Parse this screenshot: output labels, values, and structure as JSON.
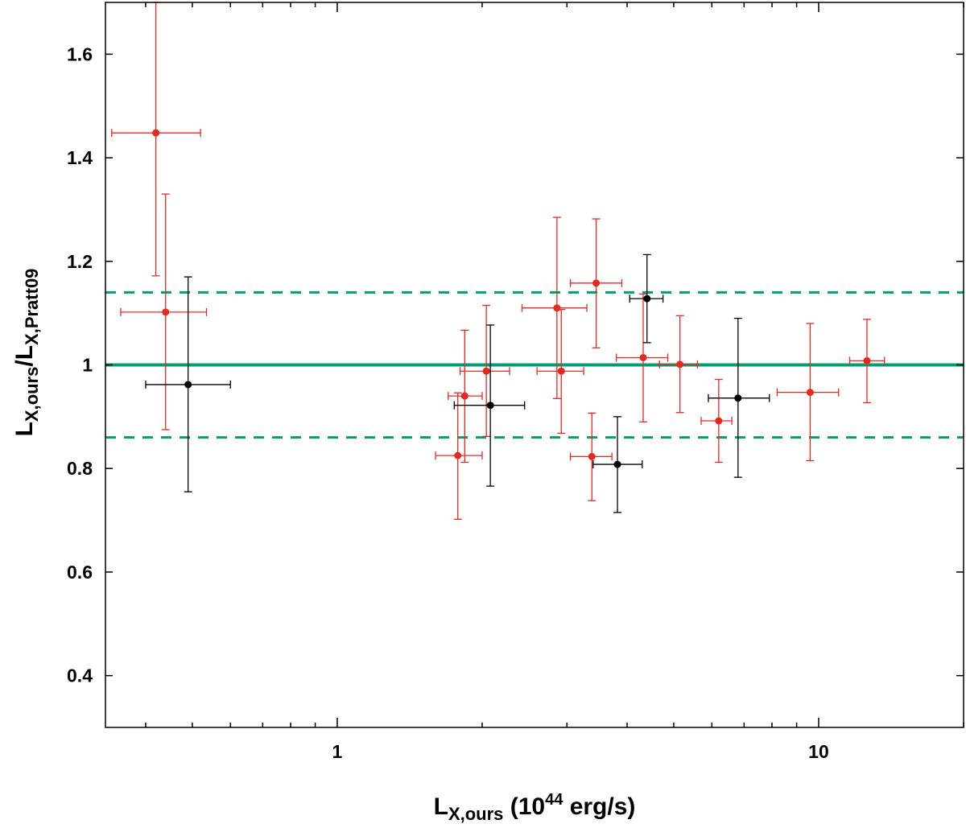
{
  "chart_data": {
    "type": "scatter",
    "title": "",
    "xlabel": {
      "main": "L",
      "sub": "X,ours",
      "pre": " (10",
      "sup": "44",
      "post": " erg/s)"
    },
    "ylabel": {
      "part1": "L",
      "sub1": "X,ours",
      "slash": "/L",
      "sub2": "X,Pratt09"
    },
    "xscale": "log",
    "xlim": [
      0.33,
      20
    ],
    "ylim": [
      0.3,
      1.7
    ],
    "xticks": [
      {
        "value": 1,
        "label": "1"
      },
      {
        "value": 10,
        "label": "10"
      }
    ],
    "yticks": [
      {
        "value": 0.4,
        "label": "0.4"
      },
      {
        "value": 0.6,
        "label": "0.6"
      },
      {
        "value": 0.8,
        "label": "0.8"
      },
      {
        "value": 1.0,
        "label": "1"
      },
      {
        "value": 1.2,
        "label": "1.2"
      },
      {
        "value": 1.4,
        "label": "1.4"
      },
      {
        "value": 1.6,
        "label": "1.6"
      }
    ],
    "reference_lines": [
      {
        "y": 1.0,
        "style": "solid",
        "color": "#009e73"
      },
      {
        "y": 1.14,
        "style": "dashed",
        "color": "#009e73"
      },
      {
        "y": 0.86,
        "style": "dashed",
        "color": "#009e73"
      }
    ],
    "grid": false,
    "legend": "none",
    "series": [
      {
        "color": "#e8281e",
        "points": [
          {
            "x": 0.42,
            "y": 1.448,
            "xlo": 0.34,
            "xhi": 0.52,
            "ylo": 1.172,
            "yhi": 1.7
          },
          {
            "x": 0.44,
            "y": 1.102,
            "xlo": 0.355,
            "xhi": 0.535,
            "ylo": 0.875,
            "yhi": 1.33
          },
          {
            "x": 1.78,
            "y": 0.825,
            "xlo": 1.6,
            "xhi": 2.0,
            "ylo": 0.702,
            "yhi": 0.946
          },
          {
            "x": 1.84,
            "y": 0.94,
            "xlo": 1.7,
            "xhi": 2.0,
            "ylo": 0.812,
            "yhi": 1.067
          },
          {
            "x": 2.04,
            "y": 0.988,
            "xlo": 1.8,
            "xhi": 2.28,
            "ylo": 0.862,
            "yhi": 1.115
          },
          {
            "x": 2.86,
            "y": 1.11,
            "xlo": 2.42,
            "xhi": 3.3,
            "ylo": 0.935,
            "yhi": 1.285
          },
          {
            "x": 2.92,
            "y": 0.988,
            "xlo": 2.6,
            "xhi": 3.25,
            "ylo": 0.868,
            "yhi": 1.107
          },
          {
            "x": 3.38,
            "y": 0.823,
            "xlo": 3.05,
            "xhi": 3.72,
            "ylo": 0.738,
            "yhi": 0.907
          },
          {
            "x": 3.45,
            "y": 1.158,
            "xlo": 3.05,
            "xhi": 3.9,
            "ylo": 1.033,
            "yhi": 1.282
          },
          {
            "x": 4.32,
            "y": 1.014,
            "xlo": 3.8,
            "xhi": 4.86,
            "ylo": 0.89,
            "yhi": 1.137
          },
          {
            "x": 5.15,
            "y": 1.001,
            "xlo": 4.67,
            "xhi": 5.6,
            "ylo": 0.908,
            "yhi": 1.095
          },
          {
            "x": 6.2,
            "y": 0.892,
            "xlo": 5.7,
            "xhi": 6.6,
            "ylo": 0.812,
            "yhi": 0.972
          },
          {
            "x": 9.6,
            "y": 0.947,
            "xlo": 8.2,
            "xhi": 11.0,
            "ylo": 0.815,
            "yhi": 1.08
          },
          {
            "x": 12.6,
            "y": 1.008,
            "xlo": 11.6,
            "xhi": 13.7,
            "ylo": 0.927,
            "yhi": 1.088
          }
        ]
      },
      {
        "color": "#000000",
        "points": [
          {
            "x": 0.49,
            "y": 0.962,
            "xlo": 0.4,
            "xhi": 0.6,
            "ylo": 0.755,
            "yhi": 1.17
          },
          {
            "x": 2.08,
            "y": 0.922,
            "xlo": 1.75,
            "xhi": 2.45,
            "ylo": 0.766,
            "yhi": 1.077
          },
          {
            "x": 3.82,
            "y": 0.808,
            "xlo": 3.4,
            "xhi": 4.3,
            "ylo": 0.715,
            "yhi": 0.9
          },
          {
            "x": 4.4,
            "y": 1.128,
            "xlo": 4.05,
            "xhi": 4.75,
            "ylo": 1.043,
            "yhi": 1.213
          },
          {
            "x": 6.8,
            "y": 0.936,
            "xlo": 5.9,
            "xhi": 7.9,
            "ylo": 0.783,
            "yhi": 1.09
          }
        ]
      }
    ]
  }
}
